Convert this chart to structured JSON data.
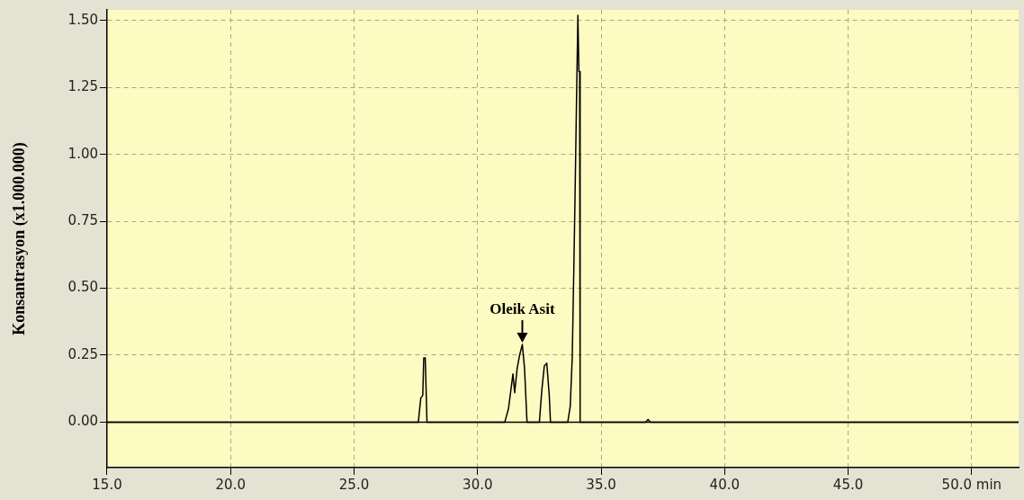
{
  "chart_data": {
    "type": "line",
    "ylabel": "Konsantrasyon (x1.000.000)",
    "x": [
      15,
      27.6,
      27.7,
      27.78,
      27.82,
      27.88,
      27.95,
      31.1,
      31.25,
      31.43,
      31.5,
      31.6,
      31.7,
      31.81,
      31.9,
      32.0,
      32.5,
      32.6,
      32.7,
      32.8,
      32.9,
      32.95,
      33.65,
      33.75,
      33.83,
      33.9,
      33.94,
      34.0,
      34.06,
      34.1,
      34.13,
      34.15,
      36.8,
      36.9,
      37.0,
      51.9
    ],
    "series": [
      {
        "color": "#000000",
        "values": [
          0,
          0,
          0.09,
          0.1,
          0.24,
          0.24,
          0,
          0,
          0.05,
          0.18,
          0.11,
          0.2,
          0.25,
          0.29,
          0.2,
          0,
          0,
          0.12,
          0.21,
          0.22,
          0.1,
          0,
          0,
          0.06,
          0.24,
          0.6,
          0.82,
          1.18,
          1.52,
          1.31,
          1.31,
          0,
          0,
          0.01,
          0,
          0
        ]
      }
    ],
    "xlim": [
      15,
      51.9
    ],
    "xticks": [
      {
        "value": 15,
        "label": "15.0"
      },
      {
        "value": 20,
        "label": "20.0"
      },
      {
        "value": 25,
        "label": "25.0"
      },
      {
        "value": 30,
        "label": "30.0"
      },
      {
        "value": 35,
        "label": "35.0"
      },
      {
        "value": 40,
        "label": "40.0"
      },
      {
        "value": 45,
        "label": "45.0"
      },
      {
        "value": 50,
        "label": "50.0 min"
      }
    ],
    "ylim": [
      -0.17,
      1.54
    ],
    "yticks": [
      {
        "value": 0,
        "label": "0.00"
      },
      {
        "value": 0.25,
        "label": "0.25"
      },
      {
        "value": 0.5,
        "label": "0.50"
      },
      {
        "value": 0.75,
        "label": "0.75"
      },
      {
        "value": 1,
        "label": "1.00"
      },
      {
        "value": 1.25,
        "label": "1.25"
      },
      {
        "value": 1.5,
        "label": "1.50"
      }
    ],
    "ref_lines": [
      {
        "axis": "y",
        "value": 0,
        "color": "#000000"
      }
    ],
    "annotations": [
      {
        "text": "Oleik Asit",
        "x": 31.81,
        "y": 0.29
      }
    ],
    "grid": true,
    "marker": "none",
    "line_style": "solid",
    "legend": false
  }
}
